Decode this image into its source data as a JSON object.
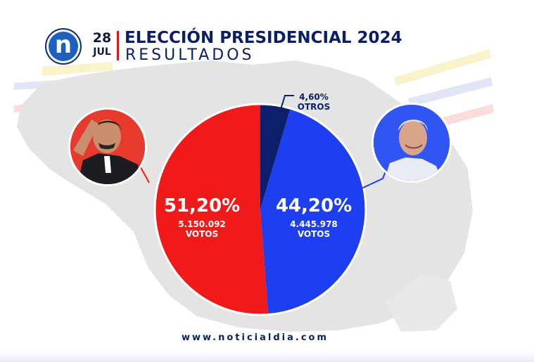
{
  "header": {
    "logo_letter": "n",
    "date_day": "28",
    "date_month": "JUL",
    "headline": "ELECCIÓN PRESIDENCIAL 2024",
    "subheadline": "RESULTADOS"
  },
  "chart_data": {
    "type": "pie",
    "slices": [
      {
        "percent_label": "51,20%",
        "value": 51.2,
        "votes_label": "5.150.092",
        "unit": "VOTOS",
        "color": "#f01a1a"
      },
      {
        "percent_label": "44,20%",
        "value": 44.2,
        "votes_label": "4.445.978",
        "unit": "VOTOS",
        "color": "#1e3ff0"
      },
      {
        "percent_label": "4,60%",
        "value": 4.6,
        "name": "OTROS",
        "color": "#0d1f6b"
      }
    ]
  },
  "footer": {
    "url": "www.noticialdia.com"
  },
  "colors": {
    "brand_navy": "#0b1f66",
    "accent_red": "#e0151c",
    "map_gray": "#e4e4e4"
  },
  "icons": {
    "logo": "noticia-al-dia-n-logo",
    "left_portrait": "candidate-photo-red",
    "right_portrait": "candidate-photo-blue"
  }
}
